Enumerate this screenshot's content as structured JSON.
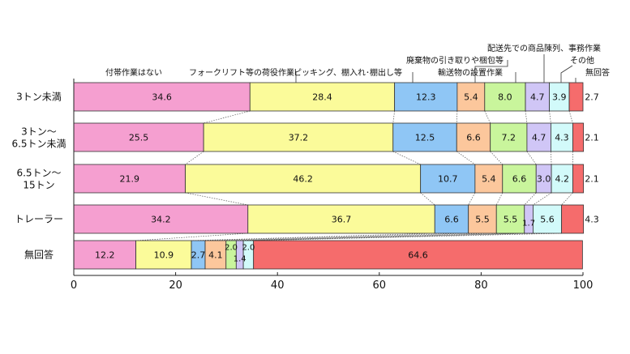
{
  "chart_data": {
    "type": "bar",
    "orientation": "horizontal",
    "stacked": true,
    "xlim": [
      0,
      100
    ],
    "x_ticks": [
      "0",
      "20",
      "40",
      "60",
      "80",
      "100"
    ],
    "categories": [
      "3トン未満",
      "3トン〜6.5トン未満",
      "6.5トン〜15トン",
      "トレーラー",
      "無回答"
    ],
    "category_lines": [
      [
        "3トン未満"
      ],
      [
        "3トン〜",
        "6.5トン未満"
      ],
      [
        "6.5トン〜",
        "15トン"
      ],
      [
        "トレーラー"
      ],
      [
        "無回答"
      ]
    ],
    "series": [
      {
        "name": "付帯作業はない",
        "color": "#f59fd0",
        "values": [
          34.6,
          25.5,
          21.9,
          34.2,
          12.2
        ],
        "labels": [
          "34.6",
          "25.5",
          "21.9",
          "34.2",
          "12.2"
        ]
      },
      {
        "name": "フォークリフト等の荷役作業",
        "color": "#fbfb9a",
        "values": [
          28.4,
          37.2,
          46.2,
          36.7,
          10.9
        ],
        "labels": [
          "28.4",
          "37.2",
          "46.2",
          "36.7",
          "10.9"
        ]
      },
      {
        "name": "ピッキング、棚入れ･棚出し等",
        "color": "#8fc6f5",
        "values": [
          12.3,
          12.5,
          10.7,
          6.6,
          2.7
        ],
        "labels": [
          "12.3",
          "12.5",
          "10.7",
          "6.6",
          "2.7"
        ]
      },
      {
        "name": "廃棄物の引き取りや梱包等",
        "color": "#fcc79c",
        "values": [
          5.4,
          6.6,
          5.4,
          5.5,
          4.1
        ],
        "labels": [
          "5.4",
          "6.6",
          "5.4",
          "5.5",
          "4.1"
        ]
      },
      {
        "name": "輸送物の設置作業",
        "color": "#c9f59c",
        "values": [
          8.0,
          7.2,
          6.6,
          5.5,
          2.0
        ],
        "labels": [
          "8.0",
          "7.2",
          "6.6",
          "5.5",
          "2.0"
        ]
      },
      {
        "name": "配送先での商品陳列、事務作業",
        "color": "#d0c6f6",
        "values": [
          4.7,
          4.7,
          3.0,
          1.7,
          1.4
        ],
        "labels": [
          "4.7",
          "4.7",
          "3.0",
          "1.7",
          "1.4"
        ]
      },
      {
        "name": "その他",
        "color": "#d2fafa",
        "values": [
          3.9,
          4.3,
          4.2,
          5.6,
          2.0
        ],
        "labels": [
          "3.9",
          "4.3",
          "4.2",
          "5.6",
          "2.0"
        ]
      },
      {
        "name": "無回答",
        "color": "#f56c6c",
        "values": [
          2.7,
          2.1,
          2.1,
          4.3,
          64.6
        ],
        "labels": [
          "2.7",
          "2.1",
          "2.1",
          "4.3",
          "64.6"
        ]
      }
    ],
    "legend_placement": "top, labels with leader lines",
    "grid": false
  }
}
